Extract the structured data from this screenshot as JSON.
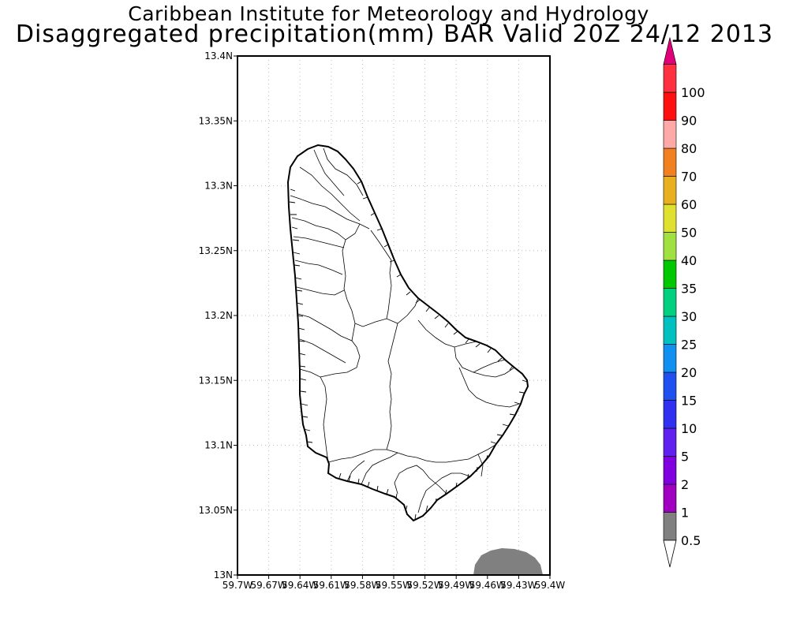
{
  "title": {
    "line1": "Caribbean Institute for Meteorology and Hydrology",
    "line2": "Disaggregated precipitation(mm) BAR Valid 20Z 24/12 2013"
  },
  "map": {
    "lon_range": [
      -59.7,
      -59.4
    ],
    "lat_range": [
      13.0,
      13.4
    ],
    "grid": "dotted",
    "x_ticks": [
      "59.7W",
      "59.67W",
      "59.64W",
      "59.61W",
      "59.58W",
      "59.55W",
      "59.52W",
      "59.49W",
      "59.46W",
      "59.43W",
      "59.4W"
    ],
    "y_ticks": [
      "13N",
      "13.05N",
      "13.1N",
      "13.15N",
      "13.2N",
      "13.25N",
      "13.3N",
      "13.35N",
      "13.4N"
    ],
    "precip_area_color": "#808080"
  },
  "colorbar": {
    "labels": [
      "0.5",
      "1",
      "2",
      "5",
      "10",
      "15",
      "20",
      "25",
      "30",
      "35",
      "40",
      "50",
      "60",
      "70",
      "80",
      "90",
      "100"
    ],
    "colors": [
      "#808080",
      "#a000c0",
      "#8000e0",
      "#6020f0",
      "#3030f0",
      "#2050f0",
      "#1090f0",
      "#00c0c0",
      "#00d080",
      "#00c800",
      "#a0e040",
      "#e0e030",
      "#e8b020",
      "#f08020",
      "#ffa8a8",
      "#ff1010",
      "#ff3040"
    ],
    "top_arrow_color": "#e0007a"
  }
}
